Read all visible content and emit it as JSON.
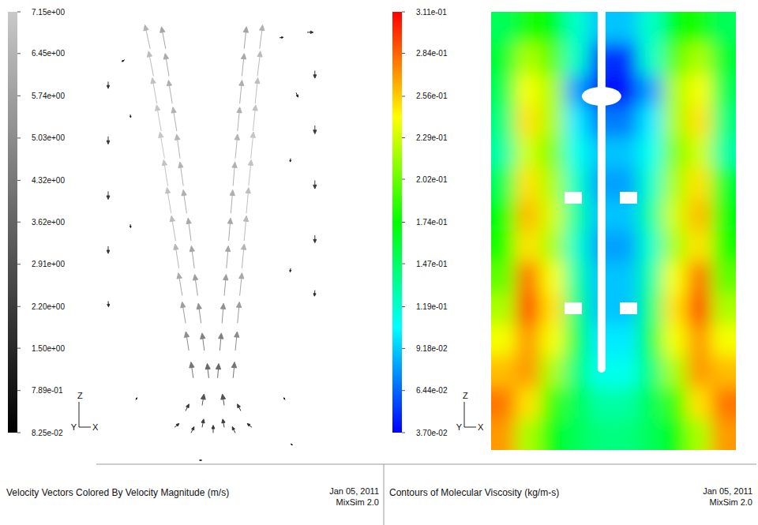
{
  "chart_data": [
    {
      "type": "vector_field",
      "title": "Velocity Vectors Colored By Velocity Magnitude (m/s)",
      "date": "Jan 05, 2011",
      "software": "MixSim 2.0",
      "axis_labels": {
        "vertical": "Z",
        "depth": "Y",
        "horizontal": "X"
      },
      "tick_labels": false,
      "xlim": [
        -1,
        1
      ],
      "ylim": [
        0,
        4.1
      ],
      "x": [
        -0.18,
        -0.04,
        -0.22,
        -0.08,
        -0.25,
        -0.11,
        -0.28,
        -0.14,
        -0.31,
        -0.17,
        -0.34,
        -0.2,
        -0.38,
        -0.24,
        -0.41,
        -0.27,
        -0.44,
        -0.3,
        -0.47,
        -0.33,
        -0.51,
        -0.37,
        -0.54,
        -0.4,
        -0.57,
        -0.43,
        0.04,
        0.18,
        0.06,
        0.2,
        0.08,
        0.22,
        0.1,
        0.24,
        0.12,
        0.26,
        0.14,
        0.28,
        0.16,
        0.3,
        0.18,
        0.32,
        0.2,
        0.34,
        0.22,
        0.36,
        0.24,
        0.38,
        0.26,
        0.4,
        0.28,
        0.42,
        -0.35,
        -0.2,
        -0.1,
        0,
        0.1,
        0.2,
        0.35,
        -0.25,
        -0.1,
        0.1,
        0.25,
        -0.95,
        -0.95,
        -0.95,
        -0.95,
        -0.95,
        0.92,
        0.92,
        0.92,
        0.92,
        0.92,
        -0.75,
        -0.75,
        0.7,
        0.7,
        -0.8,
        0.85,
        0.6,
        0.75,
        -0.1,
        0.7,
        -0.7,
        0.65
      ],
      "y": [
        0.8,
        0.8,
        1.05,
        1.05,
        1.3,
        1.3,
        1.55,
        1.55,
        1.8,
        1.8,
        2.05,
        2.05,
        2.3,
        2.3,
        2.55,
        2.55,
        2.8,
        2.8,
        3.05,
        3.05,
        3.3,
        3.3,
        3.55,
        3.55,
        3.8,
        3.8,
        0.8,
        0.8,
        1.05,
        1.05,
        1.3,
        1.3,
        1.55,
        1.55,
        1.8,
        1.8,
        2.05,
        2.05,
        2.3,
        2.3,
        2.55,
        2.55,
        2.8,
        2.8,
        3.05,
        3.05,
        3.3,
        3.3,
        3.55,
        3.55,
        3.8,
        3.8,
        0.35,
        0.3,
        0.35,
        0.3,
        0.35,
        0.3,
        0.35,
        0.5,
        0.55,
        0.55,
        0.5,
        3.5,
        3.0,
        2.5,
        2.0,
        1.5,
        3.6,
        3.1,
        2.6,
        2.1,
        1.6,
        3.2,
        2.2,
        2.8,
        1.8,
        3.7,
        3.95,
        3.9,
        3.4,
        0.05,
        0.2,
        0.6,
        0.6
      ],
      "u": [
        -0.6,
        -0.4,
        -0.8,
        -0.6,
        -0.9,
        -0.7,
        -1.0,
        -0.8,
        -1.0,
        -0.8,
        -1.1,
        -0.8,
        -1.1,
        -0.9,
        -1.1,
        -0.9,
        -1.2,
        -0.9,
        -1.2,
        -1.0,
        -1.2,
        -1.0,
        -1.3,
        -1.0,
        -1.4,
        -1.1,
        0.3,
        0.4,
        0.4,
        0.5,
        0.4,
        0.5,
        0.5,
        0.6,
        0.5,
        0.6,
        0.5,
        0.6,
        0.5,
        0.6,
        0.5,
        0.7,
        0.6,
        0.7,
        0.6,
        0.7,
        0.6,
        0.7,
        0.6,
        0.8,
        0.6,
        0.8,
        1.2,
        0.8,
        0.4,
        0,
        -0.4,
        -0.8,
        -1.2,
        0.9,
        0.5,
        -0.5,
        -0.9,
        0,
        0,
        0,
        0,
        0.1,
        0,
        0,
        0,
        0,
        -0.1,
        0.1,
        0.1,
        -0.1,
        -0.1,
        -0.8,
        1.6,
        1.0,
        0.5,
        -0.7,
        0.5,
        0.3,
        -0.3
      ],
      "v": [
        4.2,
        3.8,
        5.0,
        4.6,
        5.6,
        5.2,
        6.0,
        5.6,
        6.4,
        5.9,
        6.6,
        6.0,
        6.8,
        6.2,
        6.9,
        6.3,
        7.0,
        6.4,
        6.9,
        6.3,
        6.8,
        6.2,
        6.6,
        6.0,
        6.3,
        5.8,
        3.8,
        4.2,
        4.6,
        5.0,
        5.2,
        5.6,
        5.6,
        6.0,
        5.9,
        6.4,
        6.0,
        6.6,
        6.2,
        6.8,
        6.3,
        6.9,
        6.4,
        7.0,
        6.3,
        6.9,
        6.2,
        6.8,
        6.0,
        6.6,
        5.8,
        6.3,
        1.0,
        1.6,
        2.2,
        2.0,
        2.2,
        1.6,
        1.0,
        1.8,
        3.0,
        3.0,
        1.8,
        -1.8,
        -2.0,
        -2.1,
        -1.9,
        -1.5,
        -2.0,
        -2.2,
        -2.2,
        -2.0,
        -1.6,
        -0.8,
        -0.9,
        -0.9,
        -1.0,
        -0.5,
        0,
        0.1,
        -1.2,
        0,
        -0.3,
        0.6,
        0.6
      ],
      "colorbar": {
        "range": [
          0.0825,
          7.15
        ],
        "ticks": [
          {
            "value": 0.0825,
            "label": "8.25e-02"
          },
          {
            "value": 0.789,
            "label": "7.89e-01"
          },
          {
            "value": 1.5,
            "label": "1.50e+00"
          },
          {
            "value": 2.2,
            "label": "2.20e+00"
          },
          {
            "value": 2.91,
            "label": "2.91e+00"
          },
          {
            "value": 3.62,
            "label": "3.62e+00"
          },
          {
            "value": 4.32,
            "label": "4.32e+00"
          },
          {
            "value": 5.03,
            "label": "5.03e+00"
          },
          {
            "value": 5.74,
            "label": "5.74e+00"
          },
          {
            "value": 6.45,
            "label": "6.45e+00"
          },
          {
            "value": 7.15,
            "label": "7.15e+00"
          }
        ]
      }
    },
    {
      "type": "contour",
      "title": "Contours of Molecular Viscosity (kg/m-s)",
      "date": "Jan 05, 2011",
      "software": "MixSim 2.0",
      "axis_labels": {
        "vertical": "Z",
        "depth": "Y",
        "horizontal": "X"
      },
      "tick_labels": false,
      "cells": [
        [
          0.15,
          0.18,
          0.17,
          0.12,
          0.09,
          0.09,
          0.12,
          0.17,
          0.18,
          0.15
        ],
        [
          0.16,
          0.22,
          0.2,
          0.12,
          0.05,
          0.05,
          0.12,
          0.2,
          0.22,
          0.16
        ],
        [
          0.15,
          0.24,
          0.22,
          0.08,
          0.04,
          0.04,
          0.08,
          0.22,
          0.24,
          0.15
        ],
        [
          0.14,
          0.25,
          0.22,
          0.1,
          0.07,
          0.07,
          0.1,
          0.22,
          0.25,
          0.14
        ],
        [
          0.13,
          0.23,
          0.21,
          0.11,
          0.09,
          0.09,
          0.11,
          0.21,
          0.23,
          0.13
        ],
        [
          0.15,
          0.25,
          0.22,
          0.12,
          0.08,
          0.08,
          0.12,
          0.22,
          0.25,
          0.16
        ],
        [
          0.17,
          0.26,
          0.23,
          0.13,
          0.09,
          0.09,
          0.13,
          0.23,
          0.26,
          0.17
        ],
        [
          0.18,
          0.25,
          0.22,
          0.12,
          0.08,
          0.08,
          0.12,
          0.22,
          0.25,
          0.18
        ],
        [
          0.2,
          0.28,
          0.24,
          0.13,
          0.09,
          0.09,
          0.13,
          0.24,
          0.28,
          0.2
        ],
        [
          0.22,
          0.29,
          0.25,
          0.14,
          0.09,
          0.09,
          0.14,
          0.25,
          0.29,
          0.22
        ],
        [
          0.24,
          0.27,
          0.24,
          0.15,
          0.1,
          0.1,
          0.15,
          0.24,
          0.27,
          0.24
        ],
        [
          0.26,
          0.27,
          0.22,
          0.14,
          0.11,
          0.11,
          0.14,
          0.22,
          0.27,
          0.26
        ],
        [
          0.28,
          0.25,
          0.19,
          0.15,
          0.13,
          0.13,
          0.15,
          0.19,
          0.25,
          0.28
        ],
        [
          0.27,
          0.22,
          0.17,
          0.15,
          0.14,
          0.14,
          0.15,
          0.17,
          0.22,
          0.27
        ]
      ],
      "colorbar": {
        "range": [
          0.037,
          0.311
        ],
        "ticks": [
          {
            "value": 0.037,
            "label": "3.70e-02"
          },
          {
            "value": 0.0644,
            "label": "6.44e-02"
          },
          {
            "value": 0.0918,
            "label": "9.18e-02"
          },
          {
            "value": 0.119,
            "label": "1.19e-01"
          },
          {
            "value": 0.147,
            "label": "1.47e-01"
          },
          {
            "value": 0.174,
            "label": "1.74e-01"
          },
          {
            "value": 0.202,
            "label": "2.02e-01"
          },
          {
            "value": 0.229,
            "label": "2.29e-01"
          },
          {
            "value": 0.256,
            "label": "2.56e-01"
          },
          {
            "value": 0.284,
            "label": "2.84e-01"
          },
          {
            "value": 0.311,
            "label": "3.11e-01"
          }
        ]
      }
    }
  ]
}
